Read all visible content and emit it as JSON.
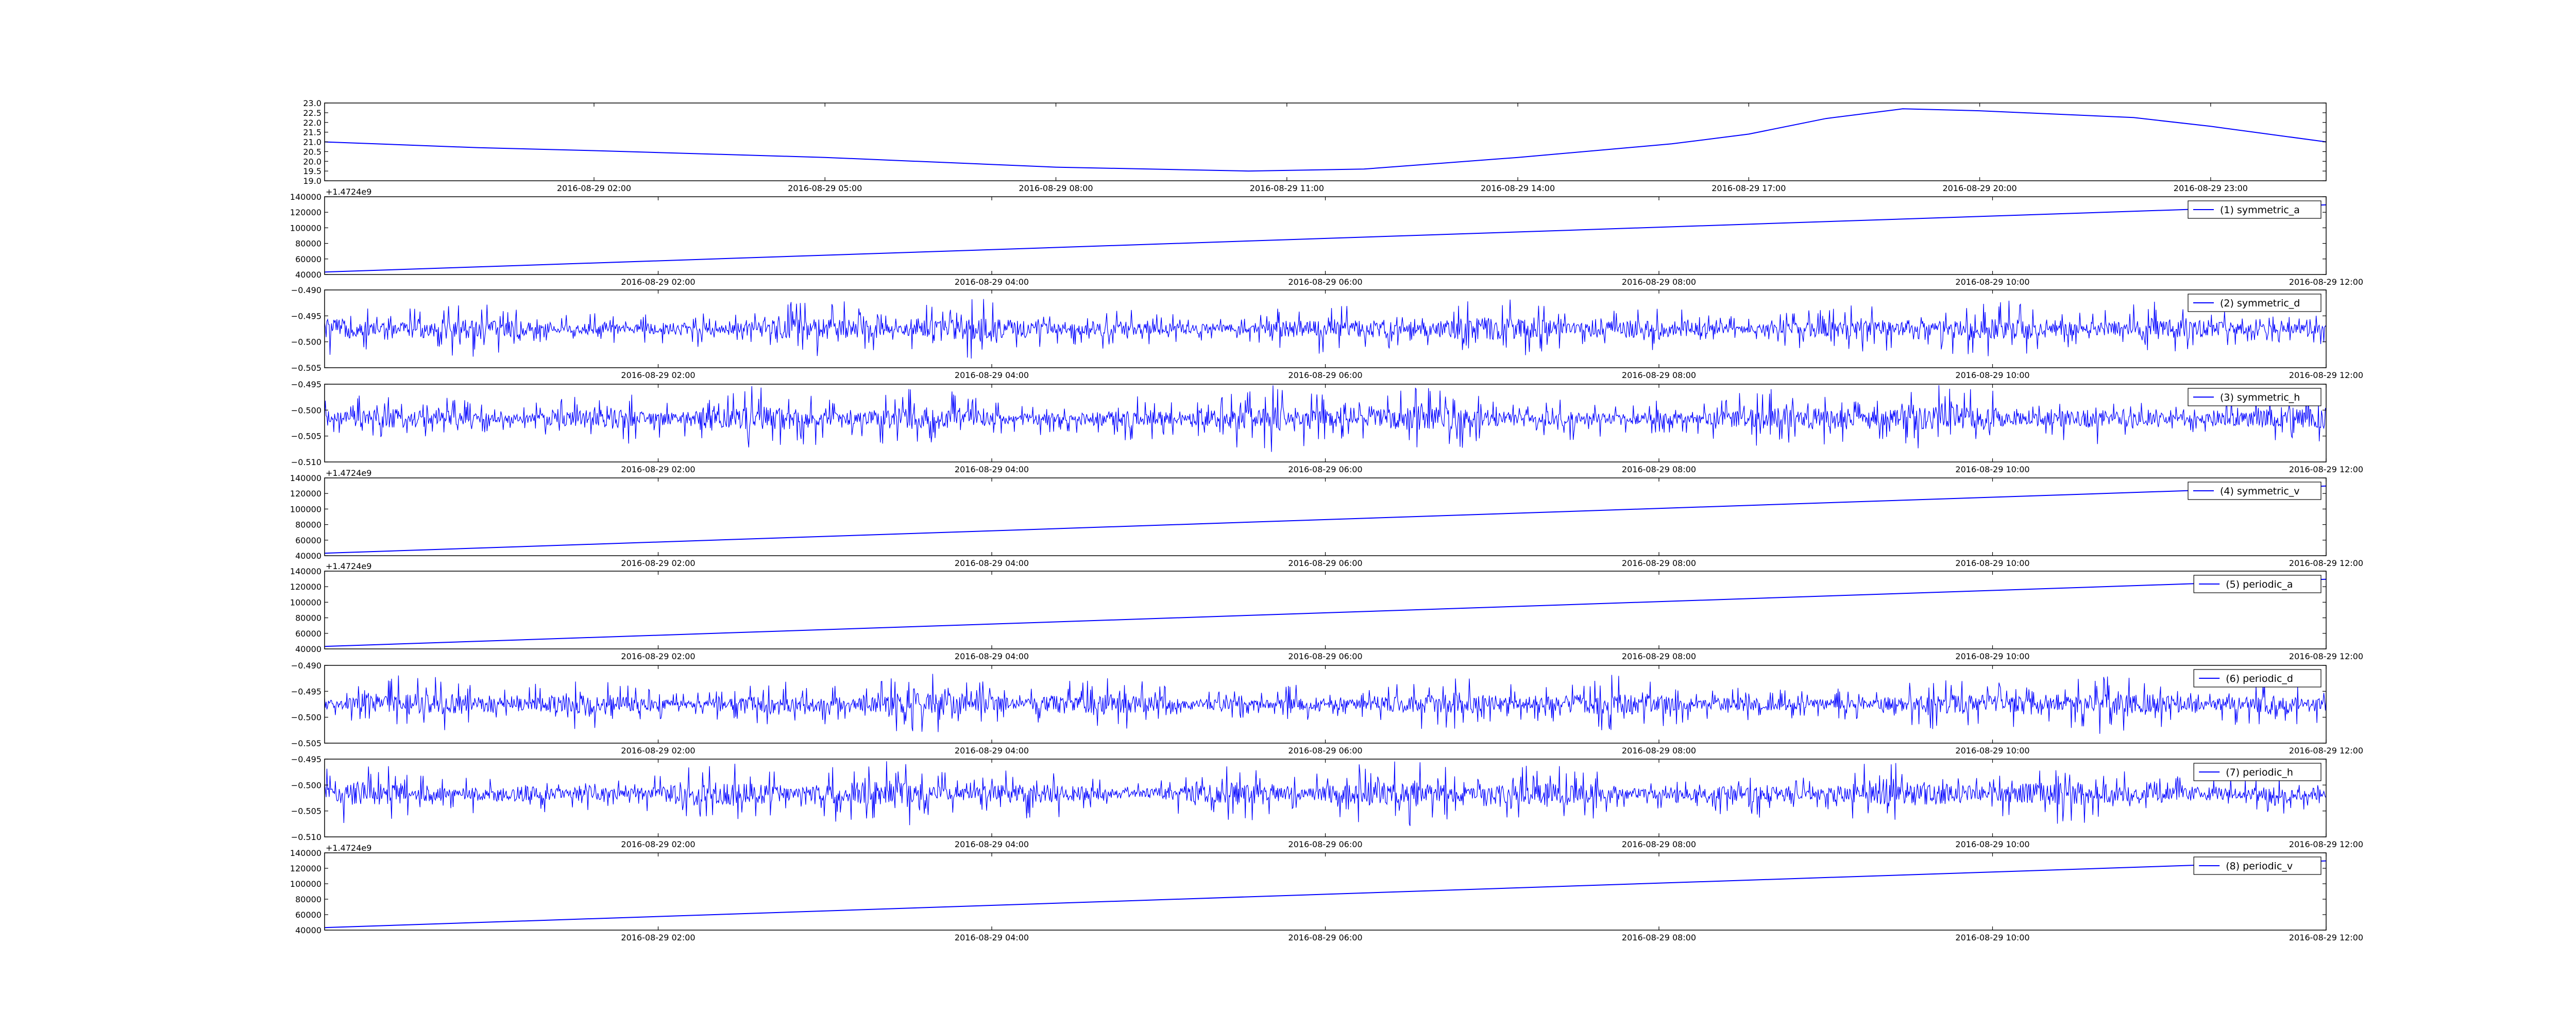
{
  "figure": {
    "background": "#ffffff",
    "line_color": "#0000ff",
    "axis_color": "#000000"
  },
  "chart_data": [
    {
      "type": "line",
      "title": "",
      "offset_label": "",
      "legend": "",
      "ylim": [
        19.0,
        23.0
      ],
      "yticks": [
        "23.0",
        "22.5",
        "22.0",
        "21.5",
        "21.0",
        "20.5",
        "20.0",
        "19.5",
        "19.0"
      ],
      "xticks": [
        "2016-08-29 02:00",
        "2016-08-29 05:00",
        "2016-08-29 08:00",
        "2016-08-29 11:00",
        "2016-08-29 14:00",
        "2016-08-29 17:00",
        "2016-08-29 20:00",
        "2016-08-29 23:00"
      ],
      "xlim": [
        "2016-08-28 22:30",
        "2016-08-30 00:30"
      ],
      "x": [
        "2016-08-28 22:30",
        "2016-08-29 00:30",
        "2016-08-29 02:00",
        "2016-08-29 05:00",
        "2016-08-29 08:00",
        "2016-08-29 10:30",
        "2016-08-29 12:00",
        "2016-08-29 14:00",
        "2016-08-29 16:00",
        "2016-08-29 17:00",
        "2016-08-29 18:00",
        "2016-08-29 19:00",
        "2016-08-29 20:00",
        "2016-08-29 22:00",
        "2016-08-29 23:00",
        "2016-08-30 00:30"
      ],
      "y": [
        21.0,
        20.7,
        20.55,
        20.2,
        19.7,
        19.5,
        19.6,
        20.2,
        20.9,
        21.4,
        22.2,
        22.7,
        22.6,
        22.25,
        21.8,
        21.0
      ]
    },
    {
      "type": "line",
      "offset_label": "+1.4724e9",
      "legend": "(1) symmetric_a",
      "ylim": [
        40000,
        140000
      ],
      "yticks": [
        "140000",
        "120000",
        "100000",
        "80000",
        "60000",
        "40000"
      ],
      "xticks": [
        "2016-08-29 02:00",
        "2016-08-29 04:00",
        "2016-08-29 06:00",
        "2016-08-29 08:00",
        "2016-08-29 10:00",
        "2016-08-29 12:00"
      ],
      "xlim": [
        "2016-08-29 00:00",
        "2016-08-29 12:00"
      ],
      "x": [
        "2016-08-29 00:00",
        "2016-08-29 12:00"
      ],
      "y": [
        43200,
        129600
      ]
    },
    {
      "type": "line",
      "noise": true,
      "legend": "(2) symmetric_d",
      "ylim": [
        -0.51,
        -0.49
      ],
      "yticks": [
        "−0.490",
        "−0.495",
        "−0.500",
        "−0.505"
      ],
      "xticks": [
        "2016-08-29 02:00",
        "2016-08-29 04:00",
        "2016-08-29 06:00",
        "2016-08-29 08:00",
        "2016-08-29 10:00",
        "2016-08-29 12:00"
      ],
      "xlim": [
        "2016-08-29 00:00",
        "2016-08-29 12:00"
      ],
      "center": -0.5,
      "amplitude": 0.008
    },
    {
      "type": "line",
      "noise": true,
      "legend": "(3) symmetric_h",
      "ylim": [
        -0.51,
        -0.492
      ],
      "yticks": [
        "−0.495",
        "−0.500",
        "−0.505",
        "−0.510"
      ],
      "xticks": [
        "2016-08-29 02:00",
        "2016-08-29 04:00",
        "2016-08-29 06:00",
        "2016-08-29 08:00",
        "2016-08-29 10:00",
        "2016-08-29 12:00"
      ],
      "xlim": [
        "2016-08-29 00:00",
        "2016-08-29 12:00"
      ],
      "center": -0.5,
      "amplitude": 0.008
    },
    {
      "type": "line",
      "offset_label": "+1.4724e9",
      "legend": "(4) symmetric_v",
      "ylim": [
        40000,
        140000
      ],
      "yticks": [
        "140000",
        "120000",
        "100000",
        "80000",
        "60000",
        "40000"
      ],
      "xticks": [
        "2016-08-29 02:00",
        "2016-08-29 04:00",
        "2016-08-29 06:00",
        "2016-08-29 08:00",
        "2016-08-29 10:00",
        "2016-08-29 12:00"
      ],
      "xlim": [
        "2016-08-29 00:00",
        "2016-08-29 12:00"
      ],
      "x": [
        "2016-08-29 00:00",
        "2016-08-29 12:00"
      ],
      "y": [
        43200,
        129600
      ]
    },
    {
      "type": "line",
      "offset_label": "+1.4724e9",
      "legend": "(5) periodic_a",
      "ylim": [
        40000,
        140000
      ],
      "yticks": [
        "140000",
        "120000",
        "100000",
        "80000",
        "60000",
        "40000"
      ],
      "xticks": [
        "2016-08-29 02:00",
        "2016-08-29 04:00",
        "2016-08-29 06:00",
        "2016-08-29 08:00",
        "2016-08-29 10:00",
        "2016-08-29 12:00"
      ],
      "xlim": [
        "2016-08-29 00:00",
        "2016-08-29 12:00"
      ],
      "x": [
        "2016-08-29 00:00",
        "2016-08-29 12:00"
      ],
      "y": [
        43200,
        129600
      ]
    },
    {
      "type": "line",
      "noise": true,
      "legend": "(6) periodic_d",
      "ylim": [
        -0.51,
        -0.49
      ],
      "yticks": [
        "−0.490",
        "−0.495",
        "−0.500",
        "−0.505"
      ],
      "xticks": [
        "2016-08-29 02:00",
        "2016-08-29 04:00",
        "2016-08-29 06:00",
        "2016-08-29 08:00",
        "2016-08-29 10:00",
        "2016-08-29 12:00"
      ],
      "xlim": [
        "2016-08-29 00:00",
        "2016-08-29 12:00"
      ],
      "center": -0.5,
      "amplitude": 0.008
    },
    {
      "type": "line",
      "noise": true,
      "legend": "(7) periodic_h",
      "ylim": [
        -0.51,
        -0.492
      ],
      "yticks": [
        "−0.495",
        "−0.500",
        "−0.505",
        "−0.510"
      ],
      "xticks": [
        "2016-08-29 02:00",
        "2016-08-29 04:00",
        "2016-08-29 06:00",
        "2016-08-29 08:00",
        "2016-08-29 10:00",
        "2016-08-29 12:00"
      ],
      "xlim": [
        "2016-08-29 00:00",
        "2016-08-29 12:00"
      ],
      "center": -0.5,
      "amplitude": 0.008
    },
    {
      "type": "line",
      "offset_label": "+1.4724e9",
      "legend": "(8) periodic_v",
      "ylim": [
        40000,
        140000
      ],
      "yticks": [
        "140000",
        "120000",
        "100000",
        "80000",
        "60000",
        "40000"
      ],
      "xticks": [
        "2016-08-29 02:00",
        "2016-08-29 04:00",
        "2016-08-29 06:00",
        "2016-08-29 08:00",
        "2016-08-29 10:00",
        "2016-08-29 12:00"
      ],
      "xlim": [
        "2016-08-29 00:00",
        "2016-08-29 12:00"
      ],
      "x": [
        "2016-08-29 00:00",
        "2016-08-29 12:00"
      ],
      "y": [
        43200,
        129600
      ]
    }
  ]
}
